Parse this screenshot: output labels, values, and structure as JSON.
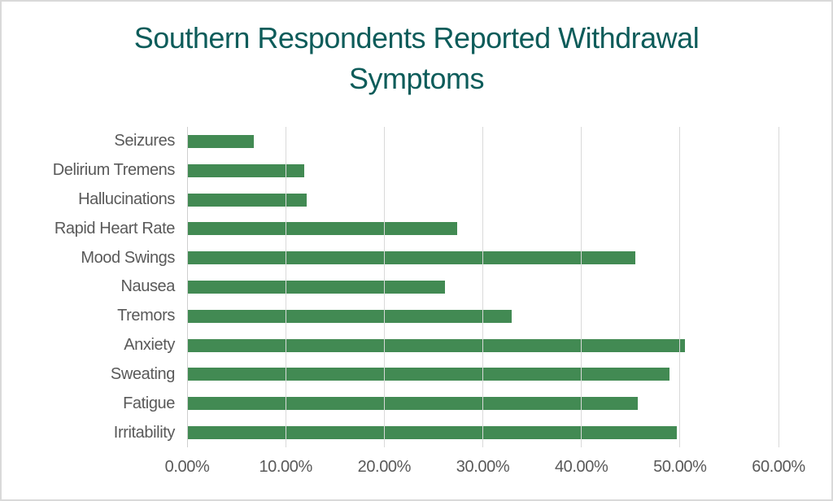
{
  "chart": {
    "title": "Southern Respondents Reported Withdrawal Symptoms"
  },
  "chart_data": {
    "type": "bar",
    "orientation": "horizontal",
    "title": "Southern Respondents Reported Withdrawal Symptoms",
    "xlabel": "",
    "ylabel": "",
    "categories": [
      "Seizures",
      "Delirium Tremens",
      "Hallucinations",
      "Rapid Heart Rate",
      "Mood Swings",
      "Nausea",
      "Tremors",
      "Anxiety",
      "Sweating",
      "Fatigue",
      "Irritability"
    ],
    "values": [
      6.8,
      11.9,
      12.1,
      27.4,
      45.5,
      26.2,
      32.9,
      50.5,
      48.9,
      45.7,
      49.7
    ],
    "unit": "%",
    "xlim": [
      0,
      60
    ],
    "x_tick_labels": [
      "0.00%",
      "10.00%",
      "20.00%",
      "30.00%",
      "40.00%",
      "50.00%",
      "60.00%"
    ],
    "grid": true,
    "legend": false,
    "colors": {
      "bar": "#428a53",
      "title": "#0d5c5a",
      "labels": "#595959",
      "gridline": "#d9d9d9",
      "zero_axis_line": "#cfcfcf",
      "frame_border": "#d9d9d9",
      "background": "#ffffff"
    }
  }
}
